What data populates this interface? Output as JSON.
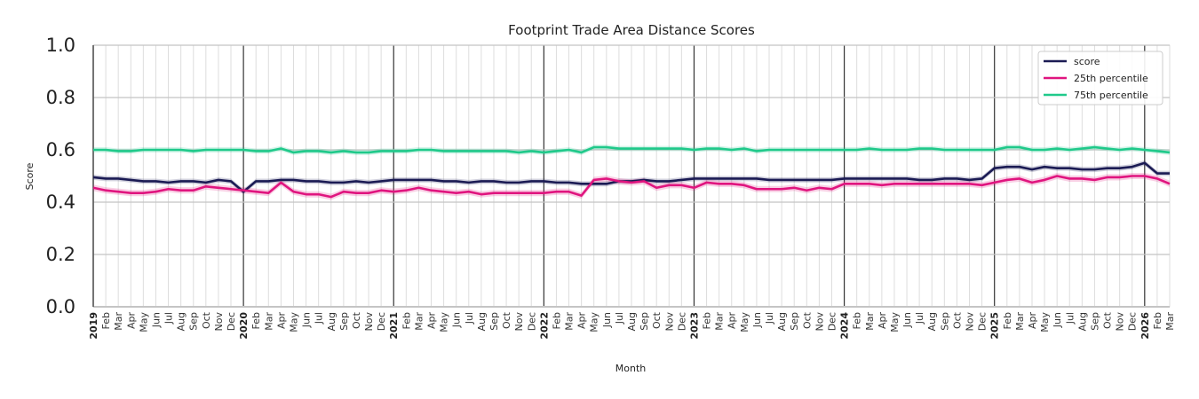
{
  "chart_data": {
    "type": "line",
    "title": "Footprint Trade Area Distance Scores",
    "xlabel": "Month",
    "ylabel": "Score",
    "ylim": [
      0,
      1
    ],
    "yticks": [
      "0.0",
      "0.2",
      "0.4",
      "0.6",
      "0.8",
      "1.0"
    ],
    "grid": true,
    "legend_position": "top-right",
    "x_start": "2019-01",
    "x_end": "2026-03",
    "month_labels": [
      "Jan",
      "Feb",
      "Mar",
      "Apr",
      "May",
      "Jun",
      "Jul",
      "Aug",
      "Sep",
      "Oct",
      "Nov",
      "Dec"
    ],
    "year_labels": [
      "2019",
      "2020",
      "2021",
      "2022",
      "2023",
      "2024",
      "2025",
      "2026"
    ],
    "series": [
      {
        "name": "score",
        "color": "#1b1b54",
        "ci_halfwidth": 0.01,
        "values": [
          0.495,
          0.49,
          0.49,
          0.485,
          0.48,
          0.48,
          0.475,
          0.48,
          0.48,
          0.475,
          0.485,
          0.48,
          0.44,
          0.48,
          0.48,
          0.485,
          0.485,
          0.48,
          0.48,
          0.475,
          0.475,
          0.48,
          0.475,
          0.48,
          0.485,
          0.485,
          0.485,
          0.485,
          0.48,
          0.48,
          0.475,
          0.48,
          0.48,
          0.475,
          0.475,
          0.48,
          0.48,
          0.475,
          0.475,
          0.47,
          0.47,
          0.47,
          0.48,
          0.48,
          0.485,
          0.48,
          0.48,
          0.485,
          0.49,
          0.49,
          0.49,
          0.49,
          0.49,
          0.49,
          0.485,
          0.485,
          0.485,
          0.485,
          0.485,
          0.485,
          0.49,
          0.49,
          0.49,
          0.49,
          0.49,
          0.49,
          0.485,
          0.485,
          0.49,
          0.49,
          0.485,
          0.49,
          0.53,
          0.535,
          0.535,
          0.525,
          0.535,
          0.53,
          0.53,
          0.525,
          0.525,
          0.53,
          0.53,
          0.535,
          0.55,
          0.51,
          0.51
        ]
      },
      {
        "name": "25th percentile",
        "color": "#e0157f",
        "ci_halfwidth": 0.012,
        "values": [
          0.455,
          0.445,
          0.44,
          0.435,
          0.435,
          0.44,
          0.45,
          0.445,
          0.445,
          0.46,
          0.455,
          0.45,
          0.445,
          0.44,
          0.435,
          0.475,
          0.44,
          0.43,
          0.43,
          0.42,
          0.44,
          0.435,
          0.435,
          0.445,
          0.44,
          0.445,
          0.455,
          0.445,
          0.44,
          0.435,
          0.44,
          0.43,
          0.435,
          0.435,
          0.435,
          0.435,
          0.435,
          0.44,
          0.44,
          0.425,
          0.485,
          0.49,
          0.48,
          0.475,
          0.48,
          0.455,
          0.465,
          0.465,
          0.455,
          0.475,
          0.47,
          0.47,
          0.465,
          0.45,
          0.45,
          0.45,
          0.455,
          0.445,
          0.455,
          0.45,
          0.47,
          0.47,
          0.47,
          0.465,
          0.47,
          0.47,
          0.47,
          0.47,
          0.47,
          0.47,
          0.47,
          0.465,
          0.475,
          0.485,
          0.49,
          0.475,
          0.485,
          0.5,
          0.49,
          0.49,
          0.485,
          0.495,
          0.495,
          0.5,
          0.5,
          0.49,
          0.47
        ]
      },
      {
        "name": "75th percentile",
        "color": "#1fc98a",
        "ci_halfwidth": 0.01,
        "values": [
          0.6,
          0.6,
          0.595,
          0.595,
          0.6,
          0.6,
          0.6,
          0.6,
          0.595,
          0.6,
          0.6,
          0.6,
          0.6,
          0.595,
          0.595,
          0.605,
          0.59,
          0.595,
          0.595,
          0.59,
          0.595,
          0.59,
          0.59,
          0.595,
          0.595,
          0.595,
          0.6,
          0.6,
          0.595,
          0.595,
          0.595,
          0.595,
          0.595,
          0.595,
          0.59,
          0.595,
          0.59,
          0.595,
          0.6,
          0.59,
          0.61,
          0.61,
          0.605,
          0.605,
          0.605,
          0.605,
          0.605,
          0.605,
          0.6,
          0.605,
          0.605,
          0.6,
          0.605,
          0.595,
          0.6,
          0.6,
          0.6,
          0.6,
          0.6,
          0.6,
          0.6,
          0.6,
          0.605,
          0.6,
          0.6,
          0.6,
          0.605,
          0.605,
          0.6,
          0.6,
          0.6,
          0.6,
          0.6,
          0.61,
          0.61,
          0.6,
          0.6,
          0.605,
          0.6,
          0.605,
          0.61,
          0.605,
          0.6,
          0.605,
          0.6,
          0.595,
          0.59
        ]
      }
    ]
  }
}
